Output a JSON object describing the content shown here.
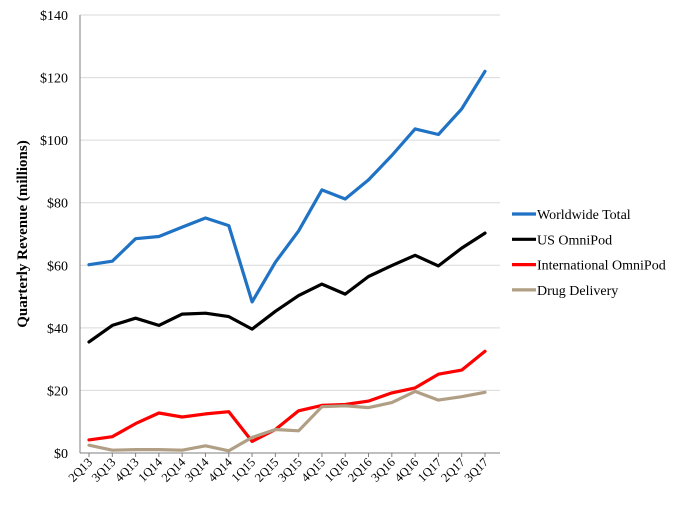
{
  "chart_data": {
    "type": "line",
    "title": "",
    "xlabel": "",
    "ylabel": "Quarterly Revenue (millions)",
    "ylim": [
      0,
      140
    ],
    "ytick_values": [
      0,
      20,
      40,
      60,
      80,
      100,
      120,
      140
    ],
    "ytick_labels": [
      "$0",
      "$20",
      "$40",
      "$60",
      "$80",
      "$100",
      "$120",
      "$140"
    ],
    "grid": true,
    "legend_position": "right",
    "categories": [
      "2Q13",
      "3Q13",
      "4Q13",
      "1Q14",
      "2Q14",
      "3Q14",
      "4Q14",
      "1Q15",
      "2Q15",
      "3Q15",
      "4Q15",
      "1Q16",
      "2Q16",
      "3Q16",
      "4Q16",
      "1Q17",
      "2Q17",
      "3Q17"
    ],
    "series": [
      {
        "name": "Worldwide Total",
        "color": "#1f72c4",
        "values": [
          60.2,
          61.3,
          68.5,
          69.2,
          72.2,
          75.1,
          72.7,
          48.3,
          61.0,
          71.0,
          84.1,
          81.2,
          87.3,
          95.1,
          103.6,
          101.8,
          110.0,
          122.0
        ]
      },
      {
        "name": "US OmniPod",
        "color": "#000000",
        "values": [
          35.5,
          40.8,
          43.1,
          40.8,
          44.4,
          44.7,
          43.6,
          39.6,
          45.3,
          50.3,
          54.0,
          50.8,
          56.4,
          59.9,
          63.2,
          59.8,
          65.5,
          70.3
        ]
      },
      {
        "name": "International OmniPod",
        "color": "#ff0000",
        "values": [
          4.2,
          5.2,
          9.4,
          12.8,
          11.5,
          12.5,
          13.2,
          3.7,
          7.5,
          13.5,
          15.2,
          15.5,
          16.6,
          19.2,
          20.8,
          25.2,
          26.5,
          32.5
        ]
      },
      {
        "name": "Drug Delivery",
        "color": "#b09f84",
        "values": [
          2.5,
          0.9,
          1.1,
          1.1,
          0.9,
          2.3,
          0.7,
          5.0,
          7.5,
          7.1,
          14.8,
          15.1,
          14.5,
          16.1,
          19.7,
          16.9,
          18.0,
          19.4
        ]
      }
    ]
  }
}
